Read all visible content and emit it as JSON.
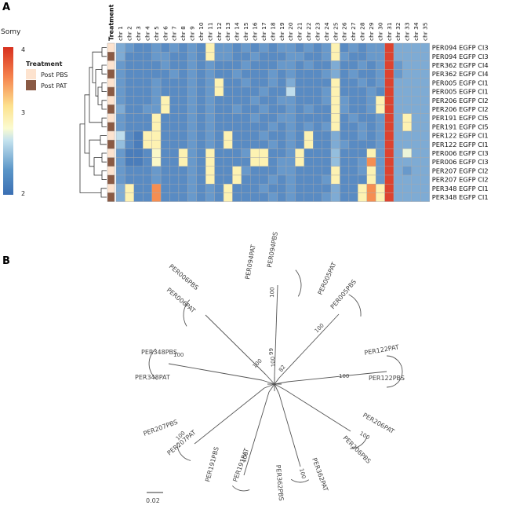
{
  "panels": {
    "a": "A",
    "b": "B"
  },
  "legend": {
    "somy_title": "Somy",
    "somy_ticks": [
      "4",
      "3",
      "2"
    ],
    "treatment_title": "Treatment",
    "treatment_items": [
      {
        "label": "Post PBS",
        "color": "#fde3cf"
      },
      {
        "label": "Post PAT",
        "color": "#8a5a44"
      }
    ],
    "treatment_column_label": "Treatment"
  },
  "heatmap": {
    "columns": [
      "chr 1",
      "chr 2",
      "chr 3",
      "chr 4",
      "chr 5",
      "chr 6",
      "chr 7",
      "chr 8",
      "chr 9",
      "chr 10",
      "chr 11",
      "chr 12",
      "chr 13",
      "chr 14",
      "chr 15",
      "chr 16",
      "chr 17",
      "chr 18",
      "chr 19",
      "chr 20",
      "chr 21",
      "chr 22",
      "chr 23",
      "chr 24",
      "chr 25",
      "chr 26",
      "chr 27",
      "chr 28",
      "chr 29",
      "chr 30",
      "chr 31",
      "chr 32",
      "chr 33",
      "chr 34",
      "chr 35"
    ],
    "rows": [
      "PER094 EGFP Cl3",
      "PER094 EGFP Cl3",
      "PER362 EGFP Cl4",
      "PER362 EGFP Cl4",
      "PER005 EGFP Cl1",
      "PER005 EGFP Cl1",
      "PER206 EGFP Cl2",
      "PER206 EGFP Cl2",
      "PER191 EGFP Cl5",
      "PER191 EGFP Cl5",
      "PER122 EGFP Cl1",
      "PER122 EGFP Cl1",
      "PER006 EGFP Cl3",
      "PER006 EGFP Cl3",
      "PER207 EGFP Cl2",
      "PER207 EGFP Cl2",
      "PER348 EGFP Cl1",
      "PER348 EGFP Cl1"
    ],
    "treatment": [
      "PBS",
      "PAT",
      "PBS",
      "PAT",
      "PBS",
      "PAT",
      "PBS",
      "PAT",
      "PBS",
      "PAT",
      "PBS",
      "PAT",
      "PBS",
      "PAT",
      "PBS",
      "PAT",
      "PBS",
      "PAT"
    ],
    "somy_range": [
      1.8,
      4.1
    ],
    "values": [
      [
        2.2,
        2.1,
        2.0,
        2.0,
        2.1,
        2.0,
        2.1,
        2.0,
        2.1,
        2.0,
        3.0,
        2.1,
        2.1,
        2.0,
        2.1,
        2.0,
        2.1,
        2.0,
        2.1,
        2.1,
        2.0,
        2.1,
        2.0,
        2.1,
        3.0,
        2.0,
        2.1,
        2.0,
        2.1,
        2.1,
        4.0,
        2.2,
        2.2,
        2.2,
        2.2
      ],
      [
        2.2,
        2.0,
        2.0,
        2.0,
        2.1,
        2.1,
        2.0,
        2.0,
        2.1,
        2.0,
        3.0,
        2.1,
        2.1,
        2.0,
        2.0,
        2.1,
        2.0,
        2.0,
        2.0,
        2.1,
        2.1,
        2.0,
        2.0,
        2.1,
        3.0,
        2.1,
        2.0,
        2.0,
        2.1,
        2.1,
        4.0,
        2.2,
        2.2,
        2.2,
        2.2
      ],
      [
        2.1,
        2.0,
        2.0,
        2.0,
        2.0,
        2.1,
        2.0,
        2.0,
        2.1,
        2.0,
        2.1,
        2.0,
        2.0,
        2.0,
        2.1,
        2.0,
        2.0,
        2.0,
        2.1,
        2.1,
        2.0,
        2.1,
        2.0,
        2.0,
        2.2,
        2.0,
        2.0,
        2.1,
        2.0,
        2.1,
        4.0,
        2.1,
        2.2,
        2.2,
        2.2
      ],
      [
        2.1,
        2.0,
        2.0,
        2.0,
        2.0,
        2.0,
        2.1,
        2.0,
        2.1,
        2.0,
        2.1,
        2.0,
        2.0,
        2.1,
        2.0,
        2.0,
        2.0,
        2.1,
        2.0,
        2.1,
        2.0,
        2.0,
        2.0,
        2.1,
        2.2,
        2.0,
        2.1,
        2.0,
        2.0,
        2.1,
        4.0,
        2.1,
        2.2,
        2.2,
        2.2
      ],
      [
        2.1,
        2.0,
        2.0,
        2.0,
        2.1,
        2.0,
        2.0,
        2.0,
        2.1,
        2.0,
        2.1,
        3.0,
        2.0,
        2.0,
        2.1,
        2.0,
        2.0,
        2.1,
        2.0,
        2.2,
        2.0,
        2.0,
        2.0,
        2.0,
        3.0,
        2.0,
        2.0,
        2.1,
        2.0,
        2.1,
        4.0,
        2.2,
        2.2,
        2.2,
        2.2
      ],
      [
        2.1,
        2.0,
        2.0,
        2.0,
        2.1,
        2.0,
        2.0,
        2.0,
        2.1,
        2.0,
        2.1,
        3.0,
        2.0,
        2.0,
        2.0,
        2.0,
        2.1,
        2.0,
        2.0,
        2.5,
        2.0,
        2.0,
        2.0,
        2.1,
        3.0,
        2.0,
        2.0,
        2.0,
        2.1,
        2.0,
        4.0,
        2.2,
        2.2,
        2.2,
        2.2
      ],
      [
        2.1,
        2.0,
        2.0,
        2.0,
        2.1,
        3.0,
        2.0,
        2.0,
        2.1,
        2.0,
        2.1,
        2.0,
        2.0,
        2.0,
        2.0,
        2.1,
        2.0,
        2.0,
        2.1,
        2.1,
        2.0,
        2.0,
        2.0,
        2.1,
        3.0,
        2.1,
        2.0,
        2.0,
        2.1,
        3.0,
        4.0,
        2.2,
        2.2,
        2.2,
        2.2
      ],
      [
        2.2,
        2.0,
        2.0,
        2.1,
        2.1,
        3.0,
        2.0,
        2.0,
        2.1,
        2.0,
        2.1,
        2.0,
        2.0,
        2.1,
        2.0,
        2.0,
        2.1,
        2.0,
        2.0,
        2.1,
        2.0,
        2.1,
        2.0,
        2.0,
        3.0,
        2.1,
        2.0,
        2.0,
        2.1,
        3.0,
        4.0,
        2.2,
        2.2,
        2.2,
        2.2
      ],
      [
        2.1,
        2.0,
        2.0,
        2.0,
        3.0,
        2.0,
        2.0,
        2.0,
        2.1,
        2.0,
        2.1,
        2.0,
        2.0,
        2.0,
        2.0,
        2.1,
        2.0,
        2.0,
        2.1,
        2.1,
        2.0,
        2.0,
        2.0,
        2.0,
        3.0,
        2.0,
        2.1,
        2.0,
        2.0,
        2.1,
        4.0,
        2.2,
        3.0,
        2.2,
        2.2
      ],
      [
        2.1,
        2.0,
        2.0,
        2.0,
        3.0,
        2.0,
        2.0,
        2.0,
        2.1,
        2.0,
        2.1,
        2.0,
        2.0,
        2.0,
        2.0,
        2.0,
        2.0,
        2.1,
        2.0,
        2.1,
        2.0,
        2.1,
        2.0,
        2.1,
        3.0,
        2.0,
        2.0,
        2.1,
        2.0,
        2.1,
        4.0,
        2.2,
        3.0,
        2.2,
        2.2
      ],
      [
        2.5,
        2.0,
        1.9,
        3.0,
        3.0,
        2.0,
        2.0,
        2.0,
        2.1,
        2.0,
        2.1,
        2.0,
        3.0,
        2.0,
        2.0,
        2.0,
        2.1,
        2.0,
        2.0,
        2.1,
        2.0,
        3.0,
        2.0,
        2.0,
        2.2,
        2.0,
        2.0,
        2.1,
        2.0,
        2.1,
        4.0,
        2.2,
        2.2,
        2.2,
        2.2
      ],
      [
        2.3,
        2.0,
        1.9,
        3.0,
        3.0,
        2.0,
        2.0,
        2.0,
        2.1,
        2.0,
        2.1,
        2.0,
        3.0,
        2.0,
        2.0,
        2.0,
        2.0,
        2.1,
        2.0,
        2.1,
        2.0,
        3.0,
        2.0,
        2.0,
        2.2,
        2.1,
        2.0,
        2.0,
        2.0,
        2.1,
        4.0,
        2.2,
        2.2,
        2.2,
        2.2
      ],
      [
        2.1,
        1.9,
        1.9,
        2.0,
        2.8,
        2.0,
        2.0,
        3.0,
        2.1,
        2.0,
        3.0,
        2.0,
        2.0,
        2.0,
        2.1,
        3.0,
        3.0,
        2.0,
        2.0,
        2.1,
        3.0,
        2.0,
        2.0,
        2.0,
        2.3,
        2.0,
        2.0,
        2.0,
        3.0,
        2.1,
        4.0,
        2.2,
        2.7,
        2.2,
        2.2
      ],
      [
        2.1,
        1.9,
        1.9,
        2.0,
        2.8,
        2.0,
        2.0,
        3.0,
        2.1,
        2.0,
        3.0,
        2.0,
        2.0,
        2.0,
        2.0,
        3.0,
        3.0,
        2.0,
        2.1,
        2.1,
        3.0,
        2.0,
        2.0,
        2.0,
        2.3,
        2.0,
        2.0,
        2.1,
        3.6,
        2.1,
        4.0,
        2.2,
        2.2,
        2.2,
        2.2
      ],
      [
        2.1,
        2.0,
        2.0,
        2.0,
        2.1,
        2.0,
        2.0,
        2.0,
        2.1,
        2.0,
        3.0,
        2.0,
        2.0,
        3.0,
        2.1,
        2.0,
        2.0,
        2.0,
        2.1,
        2.1,
        2.0,
        2.0,
        2.0,
        2.0,
        3.0,
        2.0,
        2.0,
        2.1,
        3.0,
        2.1,
        4.0,
        2.2,
        2.1,
        2.2,
        2.2
      ],
      [
        2.1,
        2.0,
        2.0,
        2.0,
        2.1,
        2.0,
        2.0,
        2.0,
        2.1,
        2.0,
        3.0,
        2.0,
        2.0,
        3.0,
        2.0,
        2.0,
        2.0,
        2.1,
        2.0,
        2.1,
        2.0,
        2.0,
        2.0,
        2.1,
        3.0,
        2.0,
        2.0,
        2.0,
        3.0,
        2.1,
        4.0,
        2.2,
        2.2,
        2.2,
        2.2
      ],
      [
        2.2,
        3.0,
        2.0,
        2.0,
        3.6,
        2.0,
        2.0,
        2.0,
        2.1,
        2.0,
        2.1,
        2.0,
        3.0,
        2.0,
        2.0,
        2.0,
        2.1,
        2.0,
        2.0,
        2.1,
        2.0,
        2.0,
        2.0,
        2.0,
        2.2,
        2.0,
        2.0,
        3.0,
        3.6,
        3.0,
        4.0,
        2.2,
        2.2,
        2.2,
        2.2
      ],
      [
        2.2,
        3.0,
        2.0,
        2.0,
        3.6,
        2.0,
        2.0,
        2.0,
        2.1,
        2.0,
        2.1,
        2.0,
        3.0,
        2.0,
        2.0,
        2.0,
        2.0,
        2.1,
        2.0,
        2.1,
        2.0,
        2.0,
        2.0,
        2.1,
        2.2,
        2.0,
        2.0,
        3.0,
        3.6,
        3.0,
        4.0,
        2.2,
        2.2,
        2.2,
        2.2
      ]
    ]
  },
  "tree": {
    "leaves": [
      "PER094PAT",
      "PER094PBS",
      "PER005PAT",
      "PER005PBS",
      "PER122PAT",
      "PER122PBS",
      "PER206PAT",
      "PER206PBS",
      "PER362PAT",
      "PER362PBS",
      "PER191PAT",
      "PER191PBS",
      "PER207PAT",
      "PER207PBS",
      "PER348PAT",
      "PER348PBS",
      "PER006PAT",
      "PER006PBS"
    ],
    "bootstrap": [
      "100",
      "100",
      "100",
      "100",
      "100",
      "100",
      "100",
      "100",
      "100",
      "99",
      "82",
      "100"
    ],
    "scale_label": "0.02"
  }
}
